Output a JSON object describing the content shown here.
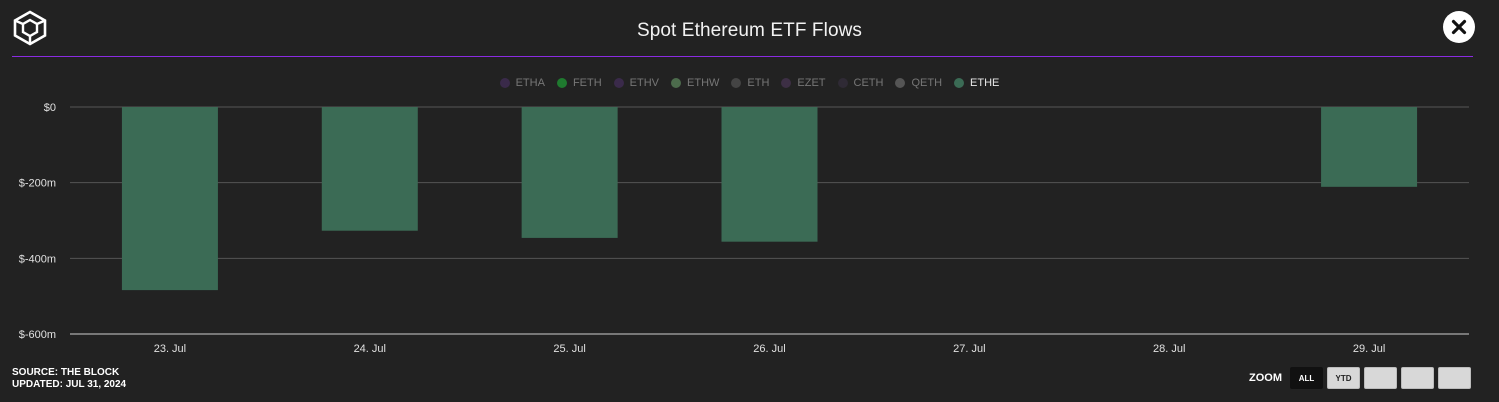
{
  "header": {
    "title": "Spot Ethereum ETF Flows"
  },
  "colors": {
    "accent": "#8a2be2",
    "bar": "#3b6b55",
    "background": "#222222"
  },
  "legend": [
    {
      "label": "ETHA",
      "color": "#3a2a4a",
      "active": false
    },
    {
      "label": "FETH",
      "color": "#1f7a2f",
      "active": false
    },
    {
      "label": "ETHV",
      "color": "#3a2a4a",
      "active": false
    },
    {
      "label": "ETHW",
      "color": "#4c6b4c",
      "active": false
    },
    {
      "label": "ETH",
      "color": "#444444",
      "active": false
    },
    {
      "label": "EZET",
      "color": "#3d2f45",
      "active": false
    },
    {
      "label": "CETH",
      "color": "#2f2a35",
      "active": false
    },
    {
      "label": "QETH",
      "color": "#555555",
      "active": false
    },
    {
      "label": "ETHE",
      "color": "#3b6b55",
      "active": true
    }
  ],
  "chart_data": {
    "type": "bar",
    "title": "Spot Ethereum ETF Flows",
    "categories": [
      "23. Jul",
      "24. Jul",
      "25. Jul",
      "26. Jul",
      "27. Jul",
      "28. Jul",
      "29. Jul"
    ],
    "series": [
      {
        "name": "ETHE",
        "values": [
          -484,
          -327,
          -346,
          -356,
          0,
          0,
          -211
        ]
      }
    ],
    "ylim": [
      -600,
      0
    ],
    "yticks": [
      0,
      -200,
      -400,
      -600
    ],
    "ytick_labels": [
      "$0",
      "$-200m",
      "$-400m",
      "$-600m"
    ],
    "grid": true,
    "legend_position": "top-center"
  },
  "footer": {
    "source": "SOURCE: THE BLOCK",
    "updated": "UPDATED: JUL 31, 2024"
  },
  "zoom": {
    "label": "ZOOM",
    "buttons": [
      {
        "label": "ALL",
        "selected": true
      },
      {
        "label": "YTD",
        "selected": false
      },
      {
        "label": "",
        "selected": false
      },
      {
        "label": "",
        "selected": false
      },
      {
        "label": "",
        "selected": false
      }
    ]
  }
}
